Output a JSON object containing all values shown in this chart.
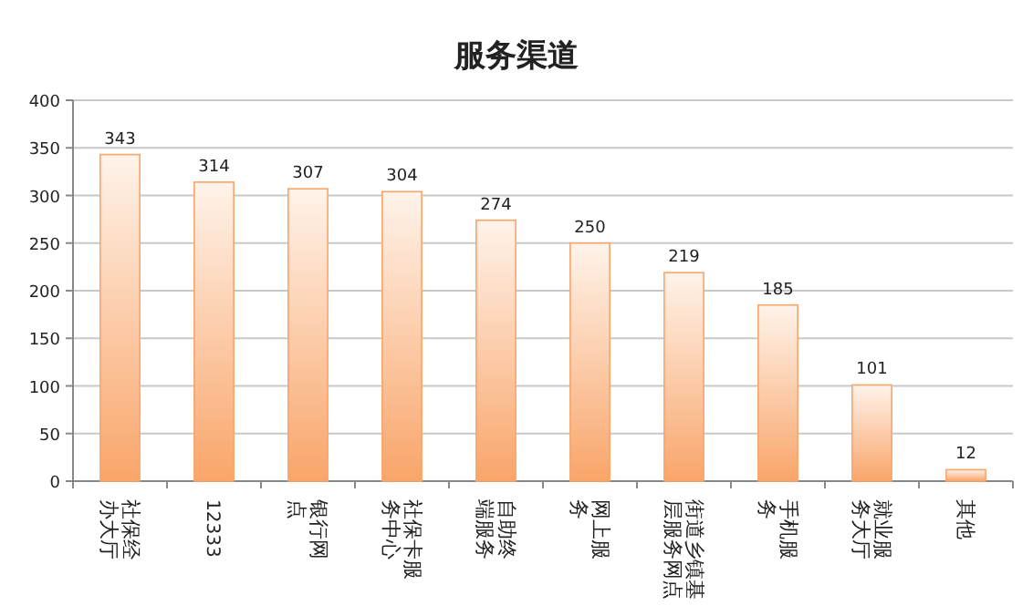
{
  "chart_data": {
    "type": "bar",
    "title": "服务渠道",
    "categories": [
      "社保经办大厅",
      "12333",
      "银行网点",
      "社保卡服务中心",
      "自助终端服务",
      "网上服务",
      "街道乡镇基层服务网点",
      "手机服务",
      "就业服务大厅",
      "其他"
    ],
    "values": [
      343,
      314,
      307,
      304,
      274,
      250,
      219,
      185,
      101,
      12
    ],
    "color": "#f9a56a",
    "ylim": [
      0,
      400
    ],
    "yticks": [
      0,
      50,
      100,
      150,
      200,
      250,
      300,
      350,
      400
    ],
    "grid": "y",
    "data_labels": true
  }
}
